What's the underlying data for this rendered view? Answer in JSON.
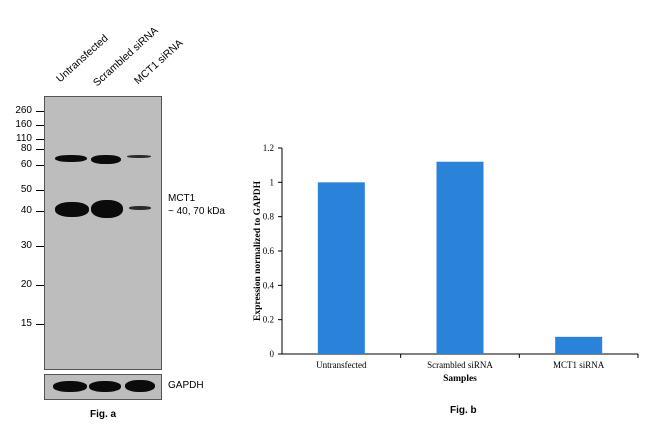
{
  "western_blot": {
    "lanes": [
      "Untransfected",
      "Scrambled siRNA",
      "MCT1 siRNA"
    ],
    "mw_markers": [
      "260",
      "160",
      "110",
      "80",
      "60",
      "50",
      "40",
      "30",
      "20",
      "15"
    ],
    "target_label_line1": "MCT1",
    "target_label_line2": "~ 40, 70 kDa",
    "loading_control_label": "GAPDH",
    "figure_label": "Fig. a"
  },
  "chart_data": {
    "type": "bar",
    "categories": [
      "Untransfected",
      "Scrambled siRNA",
      "MCT1 siRNA"
    ],
    "values": [
      1.0,
      1.12,
      0.1
    ],
    "title": "",
    "xlabel": "Samples",
    "ylabel": "Expression normalized to GAPDH",
    "ylim": [
      0,
      1.2
    ],
    "yticks": [
      "0",
      "0.2",
      "0.4",
      "0.6",
      "0.8",
      "1",
      "1.2"
    ],
    "bar_color": "#2b82d9",
    "grid": false,
    "legend": "none",
    "figure_label": "Fig. b"
  }
}
